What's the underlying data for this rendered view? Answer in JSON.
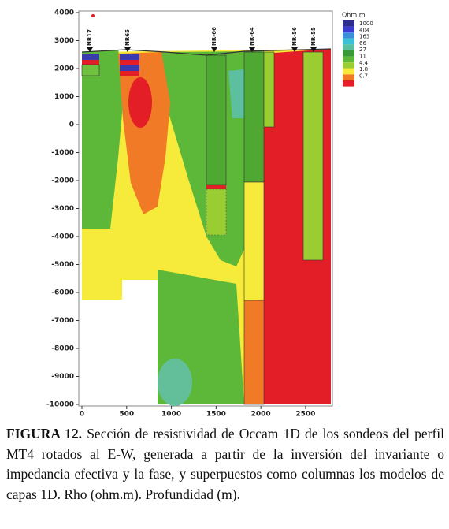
{
  "figure": {
    "yticks": [
      4000,
      3000,
      2000,
      1000,
      0,
      -1000,
      -2000,
      -3000,
      -4000,
      -5000,
      -6000,
      -7000,
      -8000,
      -9000,
      -10000
    ],
    "xticks": [
      0,
      500,
      1000,
      1500,
      2000,
      2500
    ],
    "ylim": [
      -10000,
      4000
    ],
    "xlim": [
      0,
      2800
    ],
    "soundings": [
      "NR17",
      "NR65",
      "NR-66",
      "NR-64",
      "NR-56",
      "NR-55"
    ],
    "colorbar": {
      "title": "Ohm.m",
      "labels": [
        "1000",
        "404",
        "163",
        "66",
        "27",
        "11",
        "4.4",
        "1.8",
        "0.7"
      ]
    }
  },
  "caption": {
    "label": "FIGURA 12.",
    "text": "Sección de resistividad de Occam 1D de los sondeos del perfil MT4 rotados al E-W, generada a partir de la inversión del invariante o impedancia efectiva y la fase, y superpuestos como columnas los modelos de capas 1D. Rho (ohm.m). Profundidad (m)."
  }
}
